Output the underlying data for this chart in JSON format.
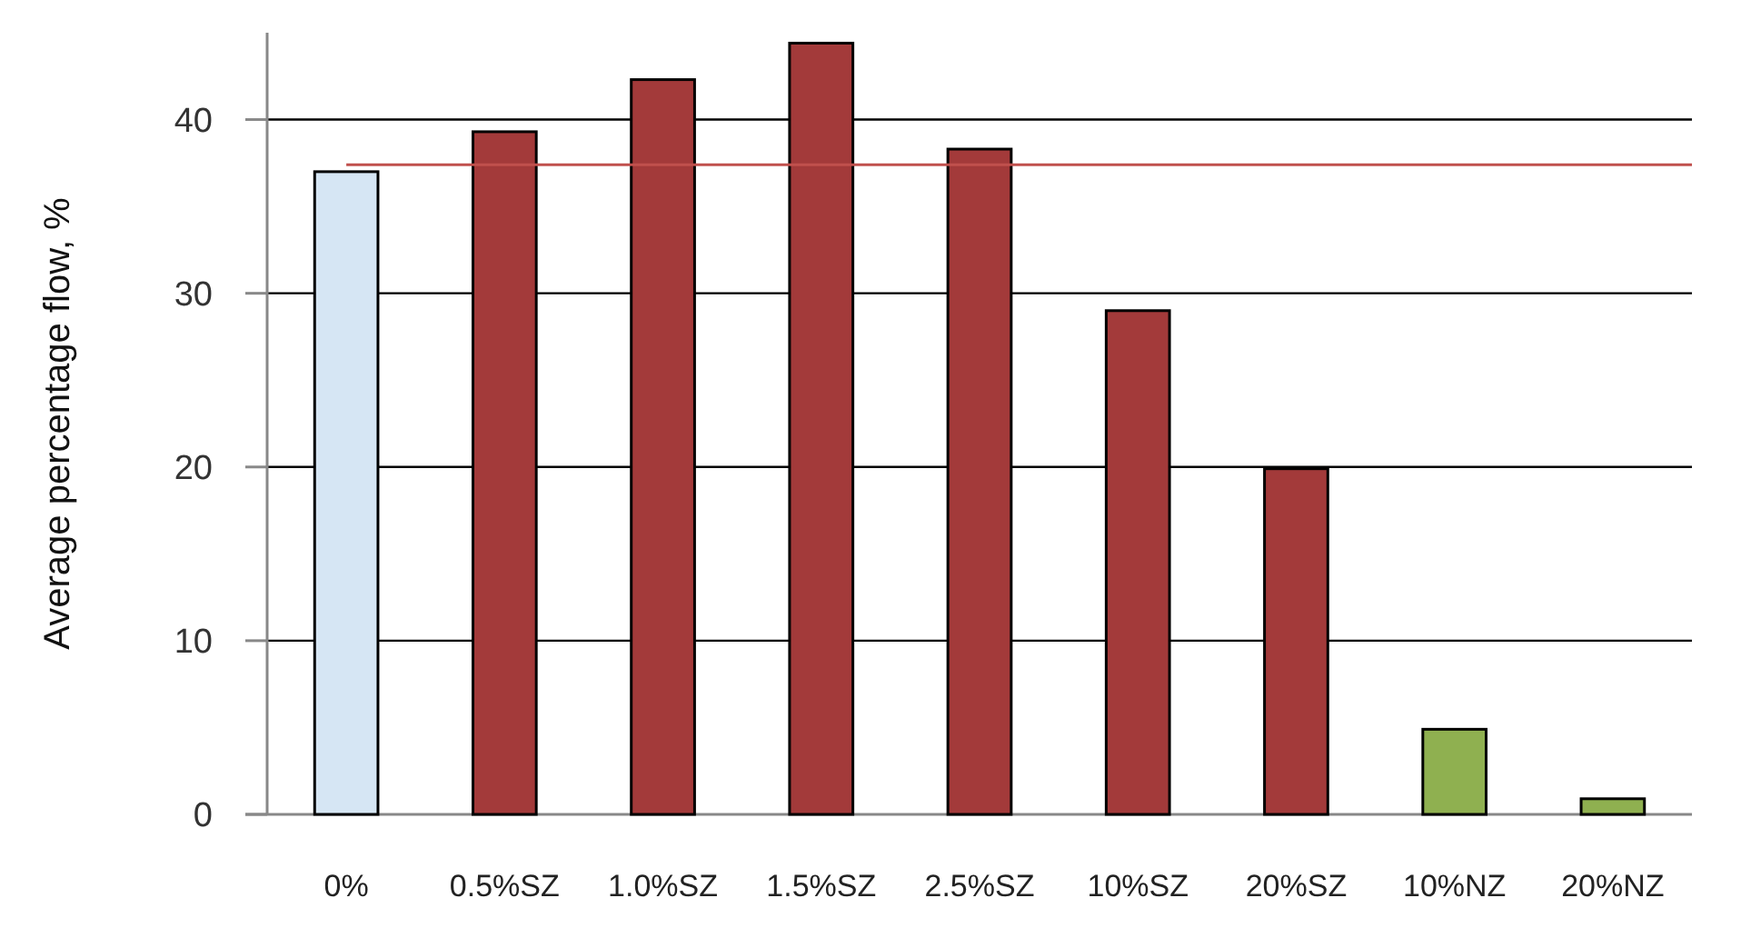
{
  "chart_data": {
    "type": "bar",
    "ylabel": "Average percentage flow, %",
    "categories": [
      "0%",
      "0.5%SZ",
      "1.0%SZ",
      "1.5%SZ",
      "2.5%SZ",
      "10%SZ",
      "20%SZ",
      "10%NZ",
      "20%NZ"
    ],
    "values": [
      37.0,
      39.3,
      42.3,
      44.4,
      38.3,
      29.0,
      19.9,
      4.9,
      0.9
    ],
    "colors": [
      "#d6e6f4",
      "#a33a3a",
      "#a33a3a",
      "#a33a3a",
      "#a33a3a",
      "#a33a3a",
      "#a33a3a",
      "#8fb050",
      "#8fb050"
    ],
    "ylim": [
      0,
      45
    ],
    "yticks": [
      0,
      10,
      20,
      30,
      40
    ],
    "grid": "y",
    "ref_lines": [
      {
        "axis": "y",
        "value": 37.4,
        "color": "#c0504d"
      }
    ]
  }
}
